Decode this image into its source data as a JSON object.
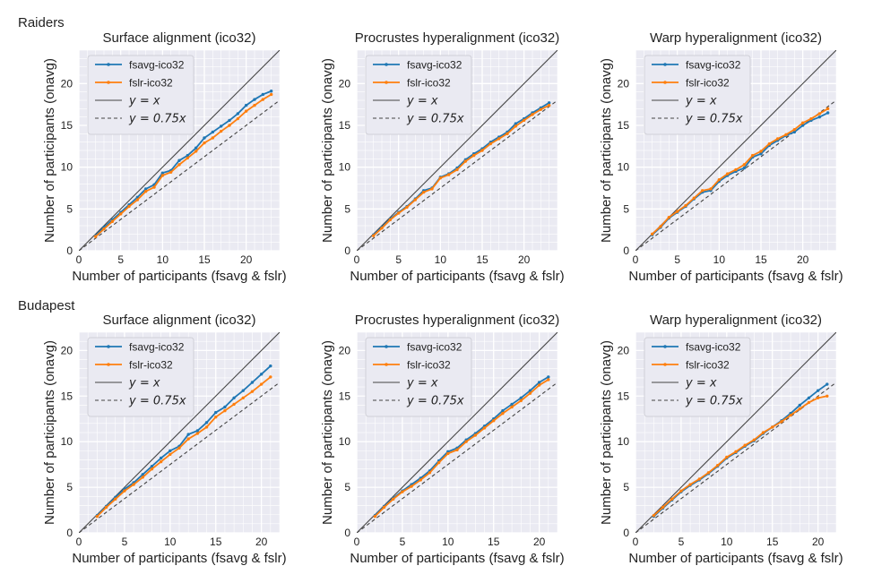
{
  "figure": {
    "row_titles": [
      "Raiders",
      "Budapest"
    ]
  },
  "chart_data": [
    {
      "type": "line",
      "row": 0,
      "col": 0,
      "title": "Surface alignment (ico32)",
      "xlabel": "Number of participants (fsavg & fslr)",
      "ylabel": "Number of participants (onavg)",
      "xlim": [
        0,
        24
      ],
      "ylim": [
        0,
        24
      ],
      "xticks": [
        0,
        5,
        10,
        15,
        20
      ],
      "yticks": [
        0,
        5,
        10,
        15,
        20
      ],
      "grid": true,
      "legend_position": "upper-left",
      "x": [
        2,
        3,
        4,
        5,
        6,
        7,
        8,
        9,
        10,
        11,
        12,
        13,
        14,
        15,
        16,
        17,
        18,
        19,
        20,
        21,
        22,
        23
      ],
      "series": [
        {
          "name": "fsavg-ico32",
          "color": "#1f77b4",
          "style": "line-dots",
          "values": [
            1.8,
            2.8,
            3.7,
            4.6,
            5.5,
            6.4,
            7.4,
            7.9,
            9.3,
            9.6,
            10.8,
            11.4,
            12.3,
            13.5,
            14.2,
            14.9,
            15.6,
            16.4,
            17.4,
            18.1,
            18.7,
            19.1
          ]
        },
        {
          "name": "fslr-ico32",
          "color": "#ff7f0e",
          "style": "line-dots",
          "values": [
            1.7,
            2.6,
            3.5,
            4.4,
            5.3,
            6.1,
            7.1,
            7.6,
            9.0,
            9.4,
            10.3,
            11.1,
            11.9,
            12.9,
            13.5,
            14.3,
            15.0,
            15.8,
            16.7,
            17.4,
            18.1,
            18.7
          ]
        },
        {
          "name": "$y = x$",
          "legend_label": "y = x",
          "slope": 1,
          "color": "#444444",
          "style": "solid"
        },
        {
          "name": "$y = 0.75x$",
          "legend_label": "y = 0.75x",
          "slope": 0.75,
          "color": "#444444",
          "style": "dashed"
        }
      ]
    },
    {
      "type": "line",
      "row": 0,
      "col": 1,
      "title": "Procrustes hyperalignment (ico32)",
      "xlabel": "Number of participants (fsavg & fslr)",
      "ylabel": "Number of participants (onavg)",
      "xlim": [
        0,
        24
      ],
      "ylim": [
        0,
        24
      ],
      "xticks": [
        0,
        5,
        10,
        15,
        20
      ],
      "yticks": [
        0,
        5,
        10,
        15,
        20
      ],
      "grid": true,
      "legend_position": "upper-left",
      "x": [
        2,
        3,
        4,
        5,
        6,
        7,
        8,
        9,
        10,
        11,
        12,
        13,
        14,
        15,
        16,
        17,
        18,
        19,
        20,
        21,
        22,
        23
      ],
      "series": [
        {
          "name": "fsavg-ico32",
          "color": "#1f77b4",
          "style": "line-dots",
          "values": [
            1.9,
            2.8,
            3.8,
            4.6,
            5.3,
            6.2,
            7.2,
            7.5,
            8.8,
            9.2,
            9.9,
            10.9,
            11.6,
            12.2,
            13.0,
            13.6,
            14.2,
            15.2,
            15.8,
            16.5,
            17.1,
            17.7
          ]
        },
        {
          "name": "fslr-ico32",
          "color": "#ff7f0e",
          "style": "line-dots",
          "values": [
            1.8,
            2.7,
            3.7,
            4.5,
            5.2,
            6.1,
            7.0,
            7.4,
            8.7,
            9.1,
            9.7,
            10.7,
            11.4,
            12.0,
            12.8,
            13.4,
            14.0,
            14.9,
            15.6,
            16.3,
            16.9,
            17.4
          ]
        },
        {
          "name": "$y = x$",
          "legend_label": "y = x",
          "slope": 1,
          "color": "#444444",
          "style": "solid"
        },
        {
          "name": "$y = 0.75x$",
          "legend_label": "y = 0.75x",
          "slope": 0.75,
          "color": "#444444",
          "style": "dashed"
        }
      ]
    },
    {
      "type": "line",
      "row": 0,
      "col": 2,
      "title": "Warp hyperalignment (ico32)",
      "xlabel": "Number of participants (fsavg & fslr)",
      "ylabel": "Number of participants (onavg)",
      "xlim": [
        0,
        24
      ],
      "ylim": [
        0,
        24
      ],
      "xticks": [
        0,
        5,
        10,
        15,
        20
      ],
      "yticks": [
        0,
        5,
        10,
        15,
        20
      ],
      "grid": true,
      "legend_position": "upper-left",
      "x": [
        2,
        3,
        4,
        5,
        6,
        7,
        8,
        9,
        10,
        11,
        12,
        13,
        14,
        15,
        16,
        17,
        18,
        19,
        20,
        21,
        22,
        23
      ],
      "series": [
        {
          "name": "fsavg-ico32",
          "color": "#1f77b4",
          "style": "line-dots",
          "values": [
            1.9,
            2.8,
            3.9,
            4.6,
            5.3,
            6.2,
            7.0,
            7.2,
            8.3,
            9.0,
            9.5,
            9.9,
            11.2,
            11.6,
            12.6,
            13.2,
            13.8,
            14.2,
            15.0,
            15.6,
            16.0,
            16.5
          ]
        },
        {
          "name": "fslr-ico32",
          "color": "#ff7f0e",
          "style": "line-dots",
          "values": [
            2.0,
            2.9,
            4.0,
            4.7,
            5.4,
            6.3,
            7.2,
            7.4,
            8.5,
            9.2,
            9.7,
            10.3,
            11.4,
            11.9,
            12.8,
            13.4,
            13.9,
            14.5,
            15.3,
            15.8,
            16.4,
            17.0
          ]
        },
        {
          "name": "$y = x$",
          "legend_label": "y = x",
          "slope": 1,
          "color": "#444444",
          "style": "solid"
        },
        {
          "name": "$y = 0.75x$",
          "legend_label": "y = 0.75x",
          "slope": 0.75,
          "color": "#444444",
          "style": "dashed"
        }
      ]
    },
    {
      "type": "line",
      "row": 1,
      "col": 0,
      "title": "Surface alignment (ico32)",
      "xlabel": "Number of participants (fsavg & fslr)",
      "ylabel": "Number of participants (onavg)",
      "xlim": [
        0,
        22
      ],
      "ylim": [
        0,
        22
      ],
      "xticks": [
        0,
        5,
        10,
        15,
        20
      ],
      "yticks": [
        0,
        5,
        10,
        15,
        20
      ],
      "grid": true,
      "legend_position": "upper-left",
      "x": [
        2,
        3,
        4,
        5,
        6,
        7,
        8,
        9,
        10,
        11,
        12,
        13,
        14,
        15,
        16,
        17,
        18,
        19,
        20,
        21
      ],
      "series": [
        {
          "name": "fsavg-ico32",
          "color": "#1f77b4",
          "style": "line-dots",
          "values": [
            1.9,
            2.9,
            3.9,
            4.8,
            5.5,
            6.4,
            7.3,
            8.2,
            9.0,
            9.5,
            10.8,
            11.2,
            12.1,
            13.2,
            13.8,
            14.8,
            15.6,
            16.5,
            17.4,
            18.3
          ]
        },
        {
          "name": "fslr-ico32",
          "color": "#ff7f0e",
          "style": "line-dots",
          "values": [
            1.8,
            2.8,
            3.7,
            4.6,
            5.3,
            6.1,
            7.0,
            7.8,
            8.6,
            9.3,
            10.3,
            10.9,
            11.6,
            12.7,
            13.4,
            14.1,
            14.8,
            15.5,
            16.3,
            17.1
          ]
        },
        {
          "name": "$y = x$",
          "legend_label": "y = x",
          "slope": 1,
          "color": "#444444",
          "style": "solid"
        },
        {
          "name": "$y = 0.75x$",
          "legend_label": "y = 0.75x",
          "slope": 0.75,
          "color": "#444444",
          "style": "dashed"
        }
      ]
    },
    {
      "type": "line",
      "row": 1,
      "col": 1,
      "title": "Procrustes hyperalignment (ico32)",
      "xlabel": "Number of participants (fsavg & fslr)",
      "ylabel": "Number of participants (onavg)",
      "xlim": [
        0,
        22
      ],
      "ylim": [
        0,
        22
      ],
      "xticks": [
        0,
        5,
        10,
        15,
        20
      ],
      "yticks": [
        0,
        5,
        10,
        15,
        20
      ],
      "grid": true,
      "legend_position": "upper-left",
      "x": [
        2,
        3,
        4,
        5,
        6,
        7,
        8,
        9,
        10,
        11,
        12,
        13,
        14,
        15,
        16,
        17,
        18,
        19,
        20,
        21
      ],
      "series": [
        {
          "name": "fsavg-ico32",
          "color": "#1f77b4",
          "style": "line-dots",
          "values": [
            1.9,
            2.9,
            3.8,
            4.6,
            5.3,
            6.0,
            6.8,
            7.9,
            8.9,
            9.3,
            10.2,
            10.9,
            11.7,
            12.5,
            13.4,
            14.1,
            14.8,
            15.6,
            16.5,
            17.1
          ]
        },
        {
          "name": "fslr-ico32",
          "color": "#ff7f0e",
          "style": "line-dots",
          "values": [
            1.8,
            2.8,
            3.7,
            4.5,
            5.1,
            5.8,
            6.6,
            7.7,
            8.7,
            9.1,
            10.0,
            10.7,
            11.5,
            12.3,
            13.1,
            13.8,
            14.5,
            15.3,
            16.2,
            16.8
          ]
        },
        {
          "name": "$y = x$",
          "legend_label": "y = x",
          "slope": 1,
          "color": "#444444",
          "style": "solid"
        },
        {
          "name": "$y = 0.75x$",
          "legend_label": "y = 0.75x",
          "slope": 0.75,
          "color": "#444444",
          "style": "dashed"
        }
      ]
    },
    {
      "type": "line",
      "row": 1,
      "col": 2,
      "title": "Warp hyperalignment (ico32)",
      "xlabel": "Number of participants (fsavg & fslr)",
      "ylabel": "Number of participants (onavg)",
      "xlim": [
        0,
        22
      ],
      "ylim": [
        0,
        22
      ],
      "xticks": [
        0,
        5,
        10,
        15,
        20
      ],
      "yticks": [
        0,
        5,
        10,
        15,
        20
      ],
      "grid": true,
      "legend_position": "upper-left",
      "x": [
        2,
        3,
        4,
        5,
        6,
        7,
        8,
        9,
        10,
        11,
        12,
        13,
        14,
        15,
        16,
        17,
        18,
        19,
        20,
        21
      ],
      "series": [
        {
          "name": "fsavg-ico32",
          "color": "#1f77b4",
          "style": "line-dots",
          "values": [
            1.8,
            2.7,
            3.6,
            4.5,
            5.2,
            5.8,
            6.5,
            7.3,
            8.2,
            8.8,
            9.5,
            10.1,
            10.9,
            11.6,
            12.3,
            13.1,
            14.0,
            14.8,
            15.6,
            16.3
          ]
        },
        {
          "name": "fslr-ico32",
          "color": "#ff7f0e",
          "style": "line-dots",
          "values": [
            1.9,
            2.8,
            3.7,
            4.6,
            5.3,
            5.9,
            6.6,
            7.4,
            8.3,
            8.9,
            9.6,
            10.2,
            11.0,
            11.6,
            12.2,
            12.9,
            13.6,
            14.3,
            14.8,
            15.0
          ]
        },
        {
          "name": "$y = x$",
          "legend_label": "y = x",
          "slope": 1,
          "color": "#444444",
          "style": "solid"
        },
        {
          "name": "$y = 0.75x$",
          "legend_label": "y = 0.75x",
          "slope": 0.75,
          "color": "#444444",
          "style": "dashed"
        }
      ]
    }
  ]
}
